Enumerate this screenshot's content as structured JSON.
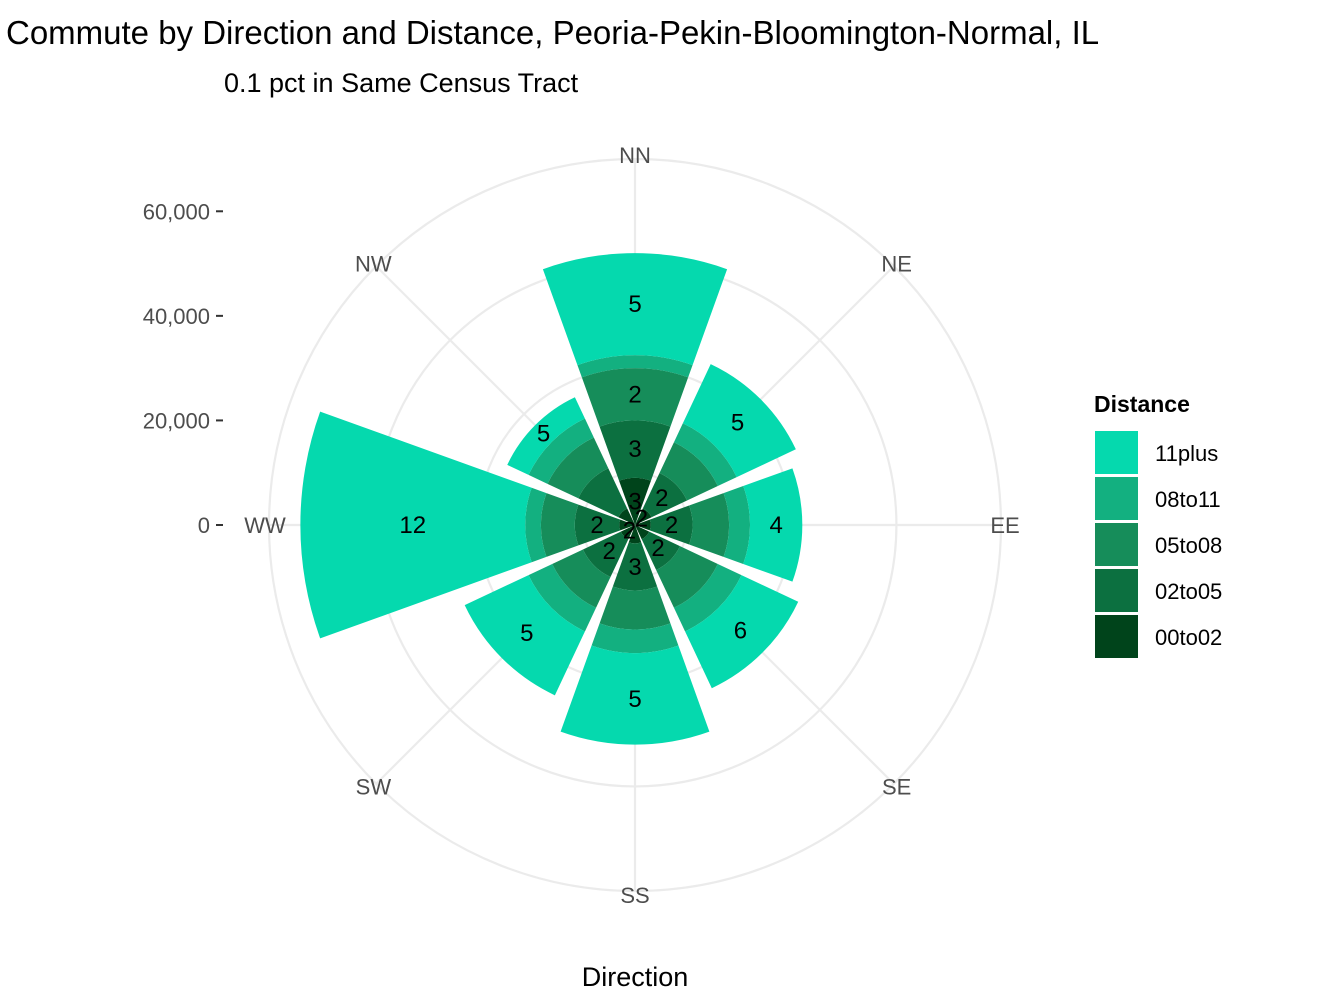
{
  "chart_data": {
    "type": "bar",
    "coord": "polar",
    "title": "Commute by Direction and Distance, Peoria-Pekin-Bloomington-Normal, IL",
    "subtitle": "0.1 pct in Same Census Tract",
    "xlabel": "Direction",
    "ylabel": "",
    "categories": [
      "NN",
      "NE",
      "EE",
      "SE",
      "SS",
      "SW",
      "WW",
      "NW"
    ],
    "y_ticks": [
      0,
      20000,
      40000,
      60000
    ],
    "y_tick_labels": [
      "0",
      "20,000",
      "40,000",
      "60,000"
    ],
    "ylim": [
      0,
      70000
    ],
    "grid": true,
    "legend_title": "Distance",
    "legend_position": "right",
    "series": [
      {
        "name": "00to02",
        "color": "#00441b",
        "values": [
          9000,
          3500,
          3000,
          3000,
          3500,
          3000,
          3000,
          3500
        ]
      },
      {
        "name": "02to05",
        "color": "#0c7040",
        "values": [
          11000,
          7500,
          8000,
          6500,
          9000,
          8000,
          8500,
          8500
        ]
      },
      {
        "name": "05to08",
        "color": "#168d5a",
        "values": [
          10000,
          6500,
          7000,
          8000,
          7500,
          6500,
          6500,
          6500
        ]
      },
      {
        "name": "08to11",
        "color": "#13b080",
        "values": [
          2500,
          4000,
          4000,
          5000,
          4500,
          5000,
          3000,
          4000
        ]
      },
      {
        "name": "11plus",
        "color": "#05d9ae",
        "values": [
          19500,
          12500,
          10000,
          12000,
          17500,
          13500,
          43000,
          4500
        ]
      }
    ],
    "labels": [
      {
        "category": "NN",
        "series": "11plus",
        "text": "5"
      },
      {
        "category": "NN",
        "series": "05to08",
        "text": "2"
      },
      {
        "category": "NN",
        "series": "02to05",
        "text": "3"
      },
      {
        "category": "NN",
        "series": "00to02",
        "text": "3"
      },
      {
        "category": "NE",
        "series": "11plus",
        "text": "5"
      },
      {
        "category": "NE",
        "series": "02to05",
        "text": "2"
      },
      {
        "category": "NE",
        "series": "00to02",
        "text": "2"
      },
      {
        "category": "EE",
        "series": "11plus",
        "text": "4"
      },
      {
        "category": "EE",
        "series": "02to05",
        "text": "2"
      },
      {
        "category": "SE",
        "series": "11plus",
        "text": "6"
      },
      {
        "category": "SE",
        "series": "02to05",
        "text": "2"
      },
      {
        "category": "SS",
        "series": "11plus",
        "text": "5"
      },
      {
        "category": "SS",
        "series": "02to05",
        "text": "3"
      },
      {
        "category": "SW",
        "series": "11plus",
        "text": "5"
      },
      {
        "category": "SW",
        "series": "02to05",
        "text": "2"
      },
      {
        "category": "SW",
        "series": "00to02",
        "text": "2"
      },
      {
        "category": "WW",
        "series": "11plus",
        "text": "12"
      },
      {
        "category": "WW",
        "series": "02to05",
        "text": "2"
      },
      {
        "category": "NW",
        "series": "11plus",
        "text": "5"
      }
    ]
  }
}
